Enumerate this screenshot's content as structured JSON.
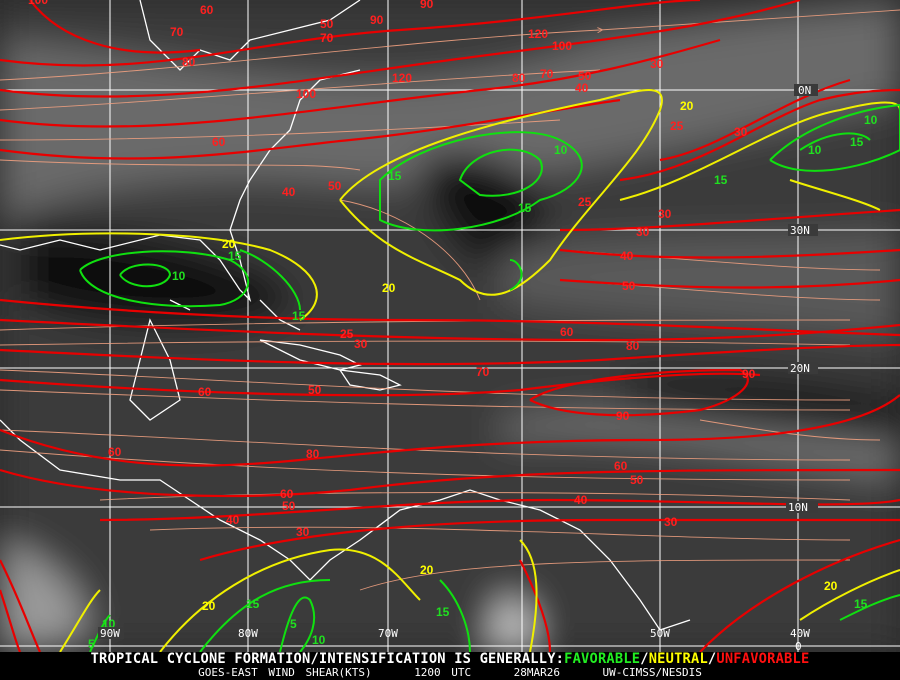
{
  "product": {
    "headline": "TROPICAL CYCLONE FORMATION/INTENSIFICATION IS GENERALLY:",
    "legend": [
      {
        "label": "FAVORABLE",
        "color": "#22ee22"
      },
      {
        "label": "NEUTRAL",
        "color": "#ffff00"
      },
      {
        "label": "UNFAVORABLE",
        "color": "#ff1010"
      }
    ],
    "separator": "/",
    "subtitle": {
      "product_name": "GOES-EAST WIND SHEAR(KTS)",
      "time": "1200 UTC",
      "date": "28MAR26",
      "source": "UW-CIMSS/NESDIS"
    }
  },
  "grid": {
    "longitudes": [
      "90W",
      "80W",
      "70W",
      "50W",
      "40W"
    ],
    "latitudes": [
      "0N",
      "30N",
      "20N",
      "10N",
      "0"
    ]
  },
  "colors": {
    "unfavorable_contour": "#e80000",
    "neutral_contour": "#f0f000",
    "favorable_contour": "#10e010",
    "streamline": "#f0a080",
    "coastline": "#ffffff",
    "grid": "#ffffff"
  },
  "contour_labels": [
    "100",
    "60",
    "70",
    "80",
    "50",
    "90",
    "90",
    "70",
    "120",
    "100",
    "30",
    "80",
    "70",
    "50",
    "40",
    "120",
    "100",
    "60",
    "40",
    "50",
    "20",
    "25",
    "30",
    "10",
    "15",
    "10",
    "15",
    "10",
    "15",
    "15",
    "25",
    "30",
    "30",
    "40",
    "50",
    "60",
    "70",
    "90",
    "90",
    "80",
    "60",
    "50",
    "40",
    "30",
    "20",
    "15",
    "10",
    "15",
    "20",
    "25",
    "30",
    "50",
    "60",
    "60",
    "80",
    "60",
    "50",
    "40",
    "30",
    "20",
    "15",
    "5",
    "10",
    "10",
    "5",
    "20",
    "15",
    "20",
    "15"
  ]
}
